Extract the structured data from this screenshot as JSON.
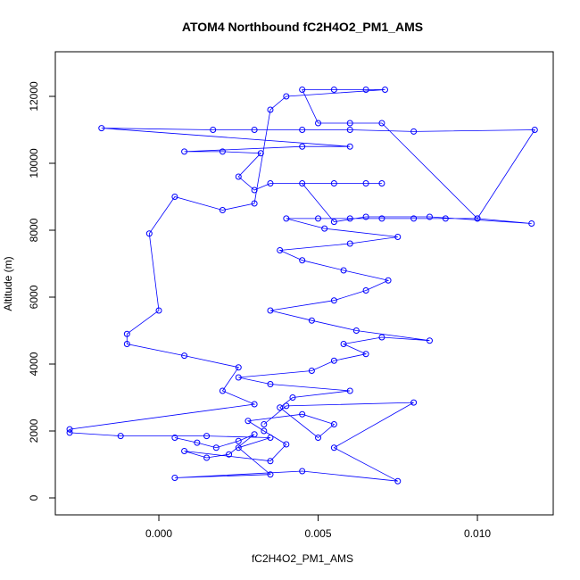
{
  "chart_data": {
    "type": "line",
    "title": "ATOM4 Northbound fC2H4O2_PM1_AMS",
    "x_label": "fC2H4O2_PM1_AMS",
    "y_label": "Altitude (m)",
    "color": "#0000ff",
    "markers": true,
    "x": [
      0.0005,
      0.0012,
      0.0018,
      0.0025,
      0.003,
      0.0022,
      0.0015,
      0.0008,
      0.0035,
      0.004,
      0.0033,
      0.0028,
      0.0045,
      0.0055,
      0.005,
      0.0038,
      0.0042,
      0.006,
      0.0035,
      0.0025,
      0.0048,
      0.0055,
      0.0065,
      0.0058,
      0.007,
      0.0085,
      0.0062,
      0.0048,
      0.0035,
      0.0055,
      0.0065,
      0.0072,
      0.0058,
      0.0045,
      0.0038,
      0.006,
      0.0075,
      0.0052,
      0.004,
      0.005,
      0.006,
      0.007,
      0.008,
      0.009,
      0.01,
      0.0117,
      0.0085,
      0.0065,
      0.0055,
      0.0045,
      0.0055,
      0.0065,
      0.007,
      0.0035,
      0.003,
      0.0025,
      0.0032,
      0.002,
      0.0008,
      0.0045,
      0.006,
      -0.0018,
      0.0017,
      0.003,
      0.0045,
      0.006,
      0.008,
      0.0118,
      0.01,
      0.007,
      0.006,
      0.005,
      0.0045,
      0.0055,
      0.0065,
      0.0071,
      0.004,
      0.0035,
      0.003,
      0.002,
      0.0005,
      -0.0003,
      0.0,
      -0.001,
      -0.001,
      0.0008,
      0.0025,
      0.002,
      0.003,
      -0.0028,
      -0.0028,
      -0.0012,
      0.0015,
      0.0035,
      0.0025,
      0.0035,
      0.0005,
      0.0045,
      0.0075,
      0.0055,
      0.008,
      0.004,
      0.0033
    ],
    "values": [
      1800,
      1650,
      1500,
      1700,
      1900,
      1300,
      1200,
      1400,
      1100,
      1600,
      2000,
      2300,
      2500,
      2200,
      1800,
      2700,
      3000,
      3200,
      3400,
      3600,
      3800,
      4100,
      4300,
      4600,
      4800,
      4700,
      5000,
      5300,
      5600,
      5900,
      6200,
      6500,
      6800,
      7100,
      7400,
      7600,
      7800,
      8050,
      8350,
      8350,
      8350,
      8350,
      8350,
      8350,
      8350,
      8200,
      8400,
      8400,
      8250,
      9400,
      9400,
      9400,
      9400,
      9400,
      9200,
      9600,
      10300,
      10350,
      10350,
      10500,
      10500,
      11050,
      11000,
      11000,
      11000,
      11000,
      10950,
      11000,
      8350,
      11200,
      11200,
      11200,
      12200,
      12200,
      12200,
      12200,
      12000,
      11600,
      8800,
      8600,
      9000,
      7900,
      5600,
      4900,
      4600,
      4250,
      3900,
      3200,
      2800,
      2050,
      1950,
      1850,
      1850,
      1800,
      1500,
      700,
      600,
      800,
      500,
      1500,
      2850,
      2750,
      2200
    ],
    "xlim": [
      -0.00325,
      0.01238
    ],
    "xticks": [
      {
        "value": 0,
        "label": "0.000"
      },
      {
        "value": 0.005,
        "label": "0.005"
      },
      {
        "value": 0.01,
        "label": "0.010"
      }
    ],
    "ylim": [
      -507,
      13333
    ],
    "yticks": [
      0,
      2000,
      4000,
      6000,
      8000,
      10000,
      12000
    ]
  }
}
